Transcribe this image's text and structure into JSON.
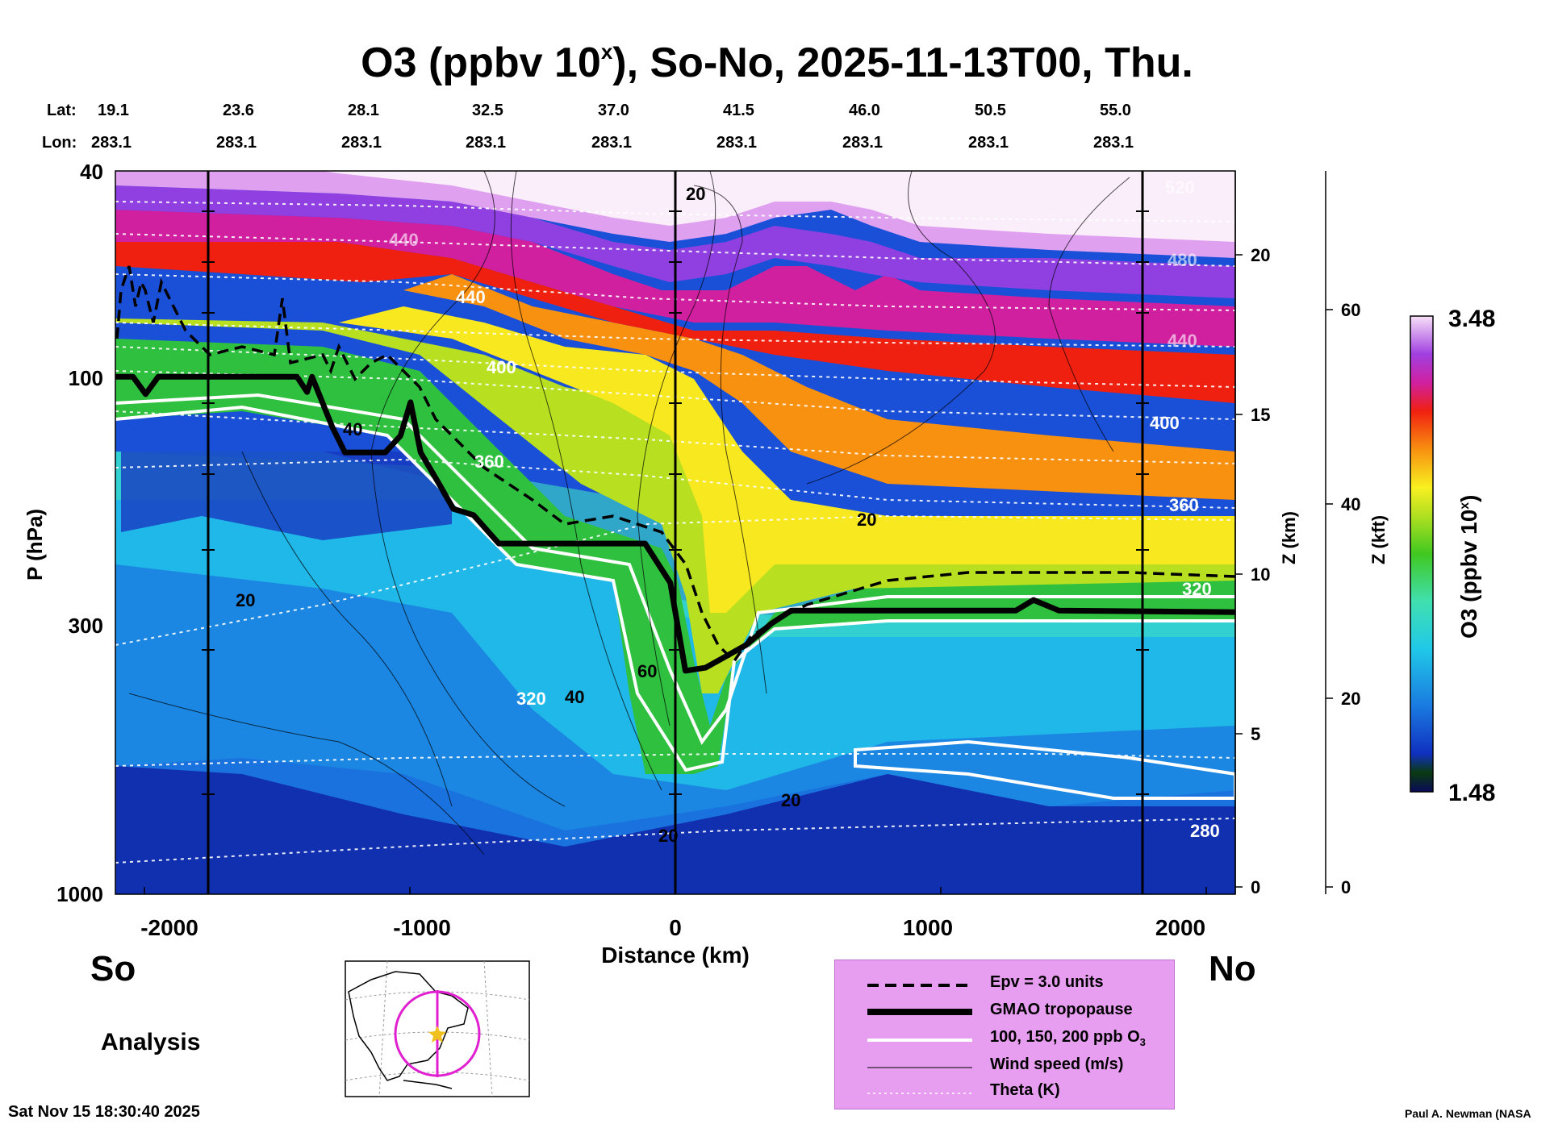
{
  "title": {
    "main": "O3 (ppbv 10",
    "sup": "x",
    "rest": "), So-No, 2025-11-13T00, Thu."
  },
  "location": {
    "lat_label": "Lat:",
    "lon_label": "Lon:",
    "lats": [
      "19.1",
      "23.6",
      "28.1",
      "32.5",
      "37.0",
      "41.5",
      "46.0",
      "50.5",
      "55.0"
    ],
    "lons": [
      "283.1",
      "283.1",
      "283.1",
      "283.1",
      "283.1",
      "283.1",
      "283.1",
      "283.1",
      "283.1"
    ]
  },
  "chart_data": {
    "type": "heatmap",
    "title": "O3 (ppbv 10^x), So-No, 2025-11-13T00, Thu.",
    "xlabel": "Distance (km)",
    "ylabel": "P (hPa)",
    "y2label": "Z (km)",
    "y3label": "Z (kft)",
    "xlim": [
      -2220,
      2220
    ],
    "ylim_hpa": [
      1000,
      40
    ],
    "x_ticks": [
      "-2000",
      "-1000",
      "0",
      "1000",
      "2000"
    ],
    "x_tick_values": [
      -2000,
      -1000,
      0,
      1000,
      2000
    ],
    "p_ticks": [
      "40",
      "100",
      "300",
      "1000"
    ],
    "p_tick_values": [
      40,
      100,
      300,
      1000
    ],
    "z_km_ticks": [
      "0",
      "5",
      "10",
      "15",
      "20"
    ],
    "z_kft_ticks": [
      "0",
      "20",
      "40",
      "60"
    ],
    "colorbar": {
      "label": "O3 (ppbv 10",
      "label_sup": "x",
      "label_end": ")",
      "max": "3.48",
      "min": "1.48"
    },
    "tropopause": [
      {
        "x": -2220,
        "p": 100
      },
      {
        "x": -2150,
        "p": 100
      },
      {
        "x": -2100,
        "p": 108
      },
      {
        "x": -2050,
        "p": 100
      },
      {
        "x": -1500,
        "p": 100
      },
      {
        "x": -1460,
        "p": 107
      },
      {
        "x": -1440,
        "p": 100
      },
      {
        "x": -1360,
        "p": 125
      },
      {
        "x": -1310,
        "p": 140
      },
      {
        "x": -1150,
        "p": 140
      },
      {
        "x": -1090,
        "p": 130
      },
      {
        "x": -1050,
        "p": 112
      },
      {
        "x": -1010,
        "p": 140
      },
      {
        "x": -940,
        "p": 160
      },
      {
        "x": -880,
        "p": 180
      },
      {
        "x": -800,
        "p": 185
      },
      {
        "x": -700,
        "p": 210
      },
      {
        "x": -120,
        "p": 210
      },
      {
        "x": -20,
        "p": 250
      },
      {
        "x": 40,
        "p": 370
      },
      {
        "x": 120,
        "p": 365
      },
      {
        "x": 280,
        "p": 330
      },
      {
        "x": 380,
        "p": 300
      },
      {
        "x": 460,
        "p": 283
      },
      {
        "x": 1000,
        "p": 283
      },
      {
        "x": 1350,
        "p": 283
      },
      {
        "x": 1420,
        "p": 270
      },
      {
        "x": 1520,
        "p": 283
      },
      {
        "x": 2220,
        "p": 285
      }
    ],
    "contour_labels": {
      "theta": [
        "440",
        "400",
        "360",
        "320",
        "280",
        "520",
        "480",
        "440",
        "400",
        "360",
        "320",
        "440"
      ],
      "wind": [
        "20",
        "20",
        "20",
        "40",
        "60",
        "40",
        "20",
        "20"
      ]
    },
    "annotations": {
      "south": "So",
      "north": "No",
      "analysis": "Analysis"
    }
  },
  "legend": {
    "items": [
      {
        "label": "Epv = 3.0 units"
      },
      {
        "label": "GMAO tropopause"
      },
      {
        "label": "100, 150, 200 ppb O3"
      },
      {
        "label": "Wind speed (m/s)"
      },
      {
        "label": "Theta (K)"
      }
    ],
    "o3_sub_text": "100, 150, 200 ppb O"
  },
  "footer": {
    "timestamp": "Sat Nov 15 18:30:40 2025",
    "credit": "Paul A. Newman (NASA"
  },
  "colors": {
    "tropopause": "#000000",
    "legend_bg": "#e89ef0",
    "ozone_white": "#ffffff",
    "map_circle": "#e020d0",
    "map_star": "#f0c020"
  }
}
